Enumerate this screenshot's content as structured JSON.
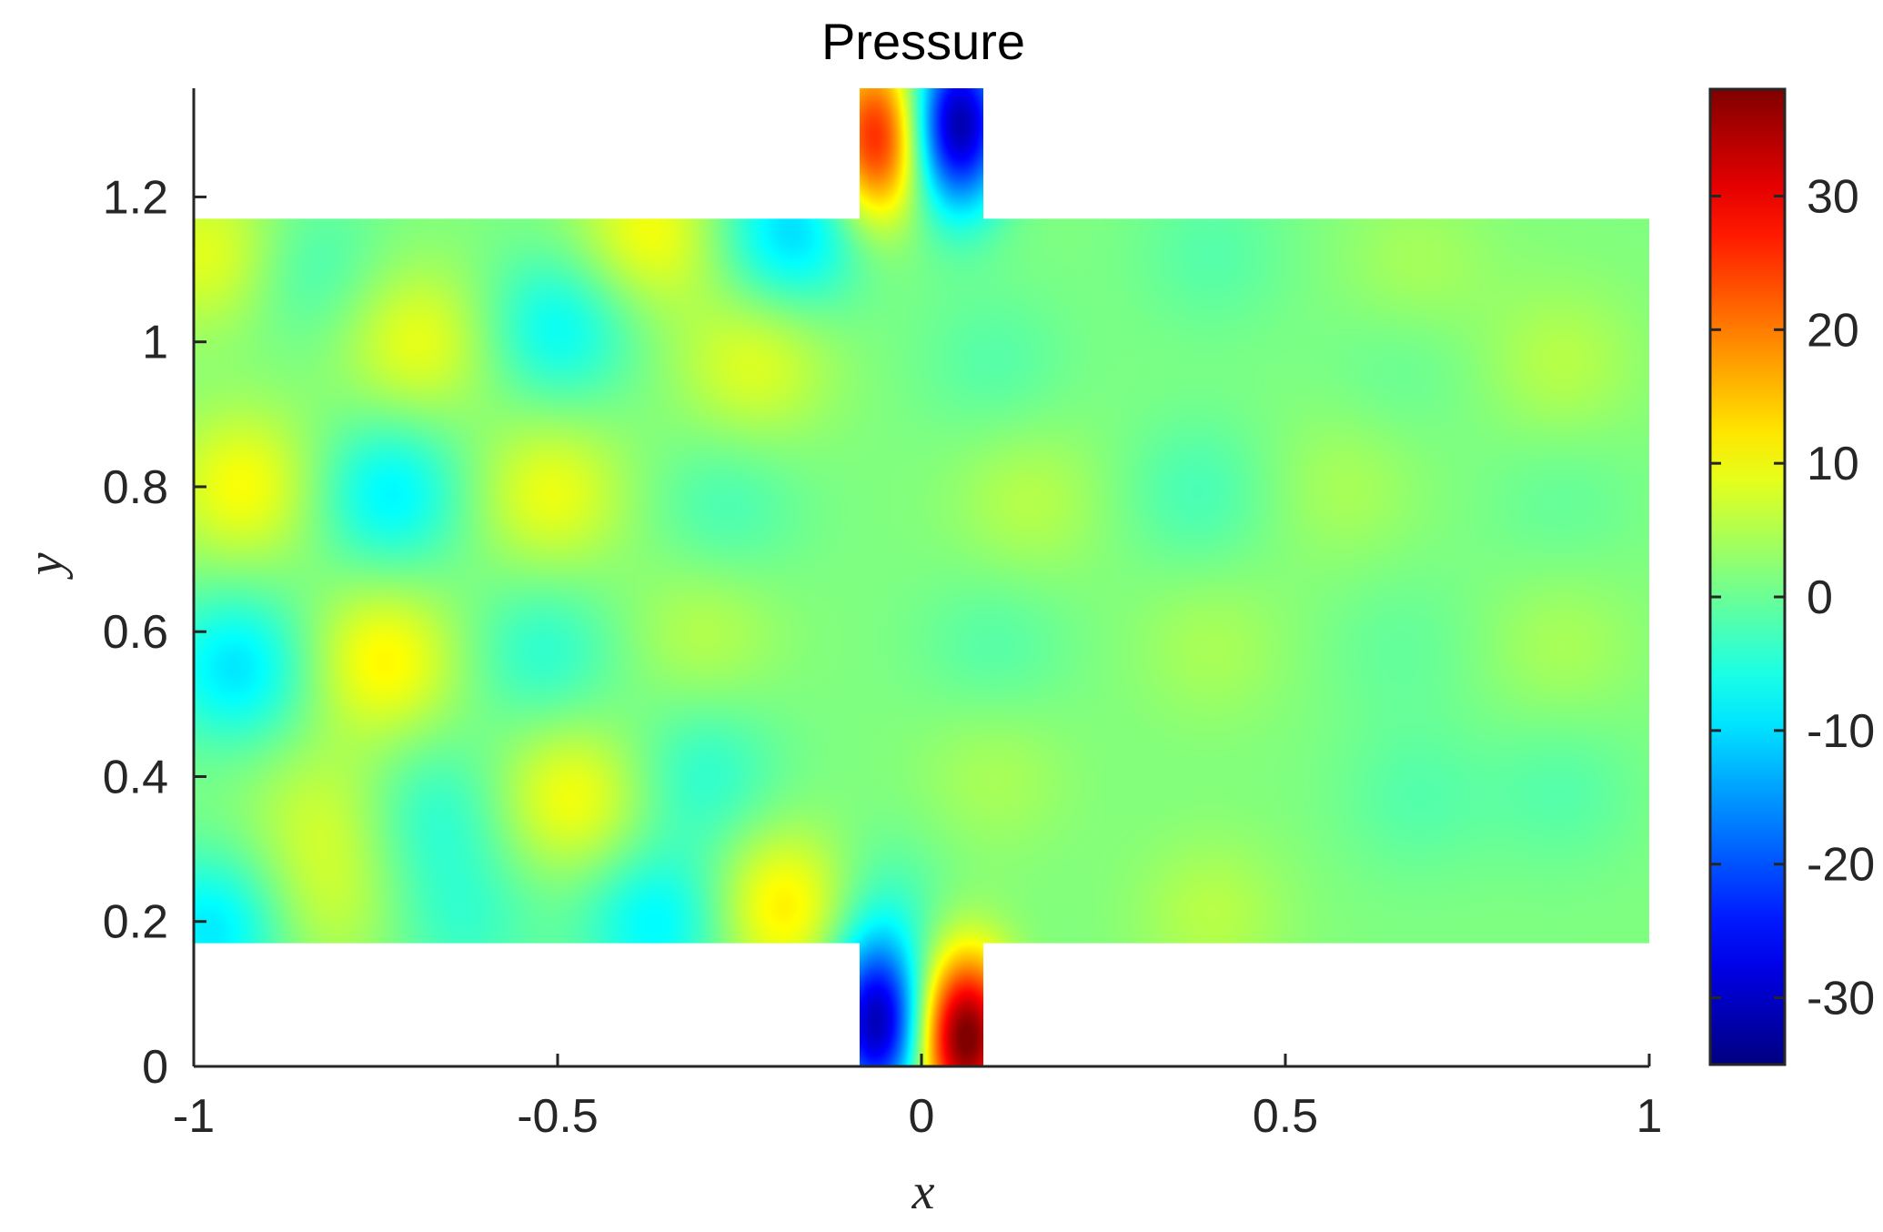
{
  "chart_data": {
    "type": "heatmap",
    "title": "Pressure",
    "xlabel": "x",
    "ylabel": "y",
    "xlim": [
      -1,
      1
    ],
    "ylim": [
      0,
      1.35
    ],
    "x_ticks": [
      -1,
      -0.5,
      0,
      0.5,
      1
    ],
    "x_tick_labels": [
      "-1",
      "-0.5",
      "0",
      "0.5",
      "1"
    ],
    "y_ticks": [
      0,
      0.2,
      0.4,
      0.6,
      0.8,
      1,
      1.2
    ],
    "y_tick_labels": [
      "0",
      "0.2",
      "0.4",
      "0.6",
      "0.8",
      "1",
      "1.2"
    ],
    "colormap": "jet",
    "clim": [
      -35,
      38
    ],
    "colorbar_ticks": [
      -30,
      -20,
      -10,
      0,
      10,
      20,
      30
    ],
    "colorbar_tick_labels": [
      "-30",
      "-20",
      "-10",
      "0",
      "10",
      "20",
      "30"
    ],
    "domain": {
      "channel": {
        "x": [
          -1,
          1
        ],
        "y": [
          0.17,
          1.17
        ]
      },
      "top_stub": {
        "x": [
          -0.085,
          0.085
        ],
        "y": [
          1.17,
          1.35
        ]
      },
      "bottom_stub": {
        "x": [
          -0.085,
          0.085
        ],
        "y": [
          0,
          0.17
        ]
      }
    },
    "pressure_features": [
      {
        "x": -0.97,
        "y": 1.12,
        "p": 8
      },
      {
        "x": -0.85,
        "y": 1.1,
        "p": -5
      },
      {
        "x": -0.69,
        "y": 1.0,
        "p": 8
      },
      {
        "x": -0.5,
        "y": 1.02,
        "p": -9
      },
      {
        "x": -0.37,
        "y": 1.15,
        "p": 9
      },
      {
        "x": -0.18,
        "y": 1.15,
        "p": -12
      },
      {
        "x": -0.23,
        "y": 0.97,
        "p": 7
      },
      {
        "x": -0.93,
        "y": 0.8,
        "p": 9
      },
      {
        "x": -0.73,
        "y": 0.79,
        "p": -10
      },
      {
        "x": -0.51,
        "y": 0.79,
        "p": 8
      },
      {
        "x": -0.27,
        "y": 0.77,
        "p": -4
      },
      {
        "x": -0.94,
        "y": 0.55,
        "p": -11
      },
      {
        "x": -0.74,
        "y": 0.56,
        "p": 10
      },
      {
        "x": -0.52,
        "y": 0.57,
        "p": -6
      },
      {
        "x": -0.3,
        "y": 0.6,
        "p": 4
      },
      {
        "x": -0.82,
        "y": 0.35,
        "p": 5
      },
      {
        "x": -0.67,
        "y": 0.35,
        "p": -6
      },
      {
        "x": -0.48,
        "y": 0.37,
        "p": 9
      },
      {
        "x": -0.3,
        "y": 0.4,
        "p": -6
      },
      {
        "x": -0.97,
        "y": 0.19,
        "p": -11
      },
      {
        "x": -0.82,
        "y": 0.22,
        "p": 5
      },
      {
        "x": -0.63,
        "y": 0.2,
        "p": -5
      },
      {
        "x": -0.36,
        "y": 0.2,
        "p": -10
      },
      {
        "x": -0.18,
        "y": 0.22,
        "p": 13
      },
      {
        "x": -0.08,
        "y": 0.22,
        "p": -6
      },
      {
        "x": 0.1,
        "y": 0.97,
        "p": -3
      },
      {
        "x": 0.15,
        "y": 0.78,
        "p": 4
      },
      {
        "x": 0.1,
        "y": 0.58,
        "p": -3
      },
      {
        "x": 0.1,
        "y": 0.4,
        "p": 3
      },
      {
        "x": 0.38,
        "y": 0.79,
        "p": -4
      },
      {
        "x": 0.4,
        "y": 0.58,
        "p": 3
      },
      {
        "x": 0.4,
        "y": 0.21,
        "p": 4
      },
      {
        "x": 0.4,
        "y": 1.12,
        "p": -3
      },
      {
        "x": 0.58,
        "y": 0.8,
        "p": 3
      },
      {
        "x": 0.66,
        "y": 0.58,
        "p": -2
      },
      {
        "x": 0.68,
        "y": 0.37,
        "p": -3
      },
      {
        "x": 0.68,
        "y": 1.1,
        "p": 3
      },
      {
        "x": 0.66,
        "y": 0.97,
        "p": -2
      },
      {
        "x": 0.88,
        "y": 0.97,
        "p": 4
      },
      {
        "x": 0.88,
        "y": 0.78,
        "p": -2
      },
      {
        "x": 0.88,
        "y": 0.58,
        "p": 3
      },
      {
        "x": 0.88,
        "y": 0.38,
        "p": -3
      },
      {
        "x": -0.06,
        "y": 1.28,
        "p": 26
      },
      {
        "x": 0.05,
        "y": 1.3,
        "p": -34
      },
      {
        "x": -0.06,
        "y": 0.06,
        "p": -33
      },
      {
        "x": 0.06,
        "y": 0.04,
        "p": 38
      }
    ]
  }
}
